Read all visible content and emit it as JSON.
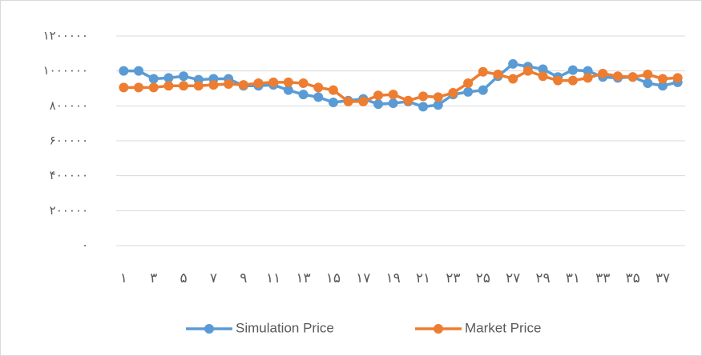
{
  "chart_data": {
    "type": "line",
    "categories": [
      "۱",
      null,
      "۳",
      null,
      "۵",
      null,
      "۷",
      null,
      "۹",
      null,
      "۱۱",
      null,
      "۱۳",
      null,
      "۱۵",
      null,
      "۱۷",
      null,
      "۱۹",
      null,
      "۲۱",
      null,
      "۲۳",
      null,
      "۲۵",
      null,
      "۲۷",
      null,
      "۲۹",
      null,
      "۳۱",
      null,
      "۳۳",
      null,
      "۳۵",
      null,
      "۳۷",
      null
    ],
    "series": [
      {
        "name": "Simulation Price",
        "color": "#5b9bd5",
        "values": [
          1000000,
          1000000,
          955000,
          960000,
          970000,
          950000,
          955000,
          955000,
          915000,
          915000,
          920000,
          890000,
          865000,
          850000,
          820000,
          830000,
          840000,
          810000,
          815000,
          825000,
          795000,
          805000,
          865000,
          880000,
          890000,
          970000,
          1040000,
          1025000,
          1010000,
          965000,
          1005000,
          1000000,
          965000,
          960000,
          965000,
          930000,
          915000,
          935000
        ]
      },
      {
        "name": "Market Price",
        "color": "#ed7d31",
        "values": [
          905000,
          905000,
          905000,
          915000,
          915000,
          915000,
          920000,
          925000,
          920000,
          930000,
          935000,
          935000,
          930000,
          905000,
          890000,
          825000,
          825000,
          860000,
          865000,
          830000,
          855000,
          850000,
          875000,
          930000,
          995000,
          980000,
          955000,
          1000000,
          970000,
          945000,
          945000,
          960000,
          985000,
          970000,
          965000,
          980000,
          955000,
          960000
        ]
      }
    ],
    "ylim": [
      0,
      1200000
    ],
    "yticks": [
      {
        "value": 0,
        "label": "۰"
      },
      {
        "value": 200000,
        "label": "۲۰۰۰۰۰"
      },
      {
        "value": 400000,
        "label": "۴۰۰۰۰۰"
      },
      {
        "value": 600000,
        "label": "۶۰۰۰۰۰"
      },
      {
        "value": 800000,
        "label": "۸۰۰۰۰۰"
      },
      {
        "value": 1000000,
        "label": "۱۰۰۰۰۰۰"
      },
      {
        "value": 1200000,
        "label": "۱۲۰۰۰۰۰"
      }
    ],
    "grid": true,
    "legend": "bottom"
  }
}
